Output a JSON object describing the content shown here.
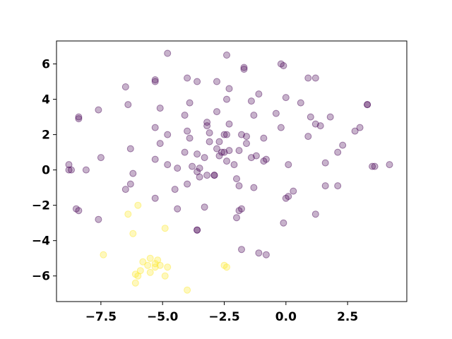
{
  "chart_data": {
    "type": "scatter",
    "title": "",
    "xlabel": "",
    "ylabel": "",
    "xlim": [
      -9.3,
      4.9
    ],
    "ylim": [
      -7.45,
      7.3
    ],
    "xticks": [
      -7.5,
      -5.0,
      -2.5,
      0.0,
      2.5
    ],
    "xtick_labels": [
      "−7.5",
      "−5.0",
      "−2.5",
      "0.0",
      "2.5"
    ],
    "yticks": [
      -6,
      -4,
      -2,
      0,
      2,
      4,
      6
    ],
    "ytick_labels": [
      "−6",
      "−4",
      "−2",
      "0",
      "2",
      "4",
      "6"
    ],
    "grid": false,
    "legend": "none",
    "series": [
      {
        "color": "#440154",
        "alpha": 0.3,
        "points": [
          [
            -4.8,
            6.6
          ],
          [
            -2.4,
            6.5
          ],
          [
            -0.2,
            6.0
          ],
          [
            -0.1,
            5.9
          ],
          [
            -1.7,
            5.8
          ],
          [
            -1.7,
            5.7
          ],
          [
            -4.0,
            5.2
          ],
          [
            -5.3,
            5.1
          ],
          [
            -5.3,
            5.0
          ],
          [
            -3.6,
            5.0
          ],
          [
            -2.8,
            5.0
          ],
          [
            0.9,
            5.2
          ],
          [
            1.2,
            5.2
          ],
          [
            -6.5,
            4.7
          ],
          [
            -2.3,
            4.6
          ],
          [
            -1.1,
            4.3
          ],
          [
            0.0,
            4.1
          ],
          [
            -2.4,
            4.0
          ],
          [
            -3.9,
            3.8
          ],
          [
            -1.4,
            3.9
          ],
          [
            0.6,
            3.8
          ],
          [
            3.3,
            3.7
          ],
          [
            3.3,
            3.7
          ],
          [
            -6.4,
            3.7
          ],
          [
            -5.1,
            3.5
          ],
          [
            -7.6,
            3.4
          ],
          [
            -2.8,
            3.3
          ],
          [
            -4.1,
            3.1
          ],
          [
            -0.4,
            3.2
          ],
          [
            -1.3,
            3.1
          ],
          [
            1.0,
            3.0
          ],
          [
            1.8,
            3.0
          ],
          [
            -8.4,
            2.9
          ],
          [
            -8.4,
            3.0
          ],
          [
            -3.2,
            2.7
          ],
          [
            -3.2,
            2.5
          ],
          [
            -2.3,
            2.6
          ],
          [
            1.2,
            2.6
          ],
          [
            1.4,
            2.5
          ],
          [
            -5.3,
            2.4
          ],
          [
            -0.2,
            2.4
          ],
          [
            3.0,
            2.4
          ],
          [
            -3.1,
            2.1
          ],
          [
            -4.0,
            2.2
          ],
          [
            -2.4,
            2.0
          ],
          [
            -2.5,
            2.0
          ],
          [
            2.8,
            2.2
          ],
          [
            -4.8,
            2.0
          ],
          [
            -1.8,
            2.0
          ],
          [
            -1.6,
            1.9
          ],
          [
            0.9,
            1.9
          ],
          [
            -3.9,
            1.8
          ],
          [
            -0.9,
            1.8
          ],
          [
            -5.1,
            1.5
          ],
          [
            -3.1,
            1.6
          ],
          [
            -2.7,
            1.6
          ],
          [
            -1.6,
            1.5
          ],
          [
            2.3,
            1.4
          ],
          [
            -6.3,
            1.2
          ],
          [
            -2.8,
            1.2
          ],
          [
            -2.6,
            1.0
          ],
          [
            -2.5,
            1.0
          ],
          [
            -2.3,
            1.1
          ],
          [
            -1.9,
            1.1
          ],
          [
            -4.1,
            1.0
          ],
          [
            -3.6,
            0.9
          ],
          [
            -2.7,
            0.8
          ],
          [
            2.1,
            1.0
          ],
          [
            -7.5,
            0.7
          ],
          [
            -5.3,
            0.6
          ],
          [
            -3.3,
            0.7
          ],
          [
            -2.4,
            0.5
          ],
          [
            -1.4,
            0.7
          ],
          [
            -1.2,
            0.8
          ],
          [
            -0.8,
            0.6
          ],
          [
            -0.9,
            0.5
          ],
          [
            -4.8,
            0.3
          ],
          [
            -3.8,
            0.2
          ],
          [
            -2.1,
            0.3
          ],
          [
            1.6,
            0.4
          ],
          [
            0.1,
            0.3
          ],
          [
            -8.8,
            0.3
          ],
          [
            -8.7,
            0.0
          ],
          [
            -8.8,
            0.0
          ],
          [
            -8.1,
            0.0
          ],
          [
            -4.4,
            0.1
          ],
          [
            -3.5,
            0.1
          ],
          [
            -3.6,
            -0.1
          ],
          [
            -3.2,
            -0.3
          ],
          [
            -2.9,
            -0.3
          ],
          [
            -2.9,
            -0.3
          ],
          [
            -6.2,
            -0.2
          ],
          [
            -3.5,
            -0.4
          ],
          [
            -2.0,
            -0.5
          ],
          [
            3.5,
            0.2
          ],
          [
            3.6,
            0.2
          ],
          [
            4.2,
            0.3
          ],
          [
            -6.3,
            -0.8
          ],
          [
            -6.5,
            -1.1
          ],
          [
            -4.5,
            -1.1
          ],
          [
            -4.0,
            -0.8
          ],
          [
            -1.9,
            -0.9
          ],
          [
            -1.3,
            -1.0
          ],
          [
            1.6,
            -0.9
          ],
          [
            2.1,
            -0.9
          ],
          [
            0.3,
            -1.2
          ],
          [
            0.1,
            -1.5
          ],
          [
            0.0,
            -1.6
          ],
          [
            -5.3,
            -1.6
          ],
          [
            -8.5,
            -2.2
          ],
          [
            -8.4,
            -2.3
          ],
          [
            -4.4,
            -2.2
          ],
          [
            -3.3,
            -2.1
          ],
          [
            -1.9,
            -2.3
          ],
          [
            -1.8,
            -2.2
          ],
          [
            1.2,
            -2.5
          ],
          [
            -7.6,
            -2.8
          ],
          [
            -2.0,
            -2.7
          ],
          [
            -0.1,
            -3.0
          ],
          [
            -3.6,
            -3.4
          ],
          [
            -3.6,
            -3.4
          ],
          [
            -1.8,
            -4.5
          ],
          [
            -1.1,
            -4.7
          ],
          [
            -0.8,
            -4.8
          ]
        ]
      },
      {
        "color": "#fde725",
        "alpha": 0.3,
        "points": [
          [
            -6.0,
            -2.0
          ],
          [
            -6.4,
            -2.5
          ],
          [
            -4.9,
            -3.3
          ],
          [
            -6.2,
            -3.6
          ],
          [
            -7.4,
            -4.8
          ],
          [
            -5.5,
            -5.0
          ],
          [
            -5.2,
            -5.1
          ],
          [
            -5.8,
            -5.2
          ],
          [
            -5.3,
            -5.3
          ],
          [
            -5.6,
            -5.4
          ],
          [
            -5.3,
            -5.5
          ],
          [
            -5.1,
            -5.4
          ],
          [
            -4.8,
            -5.5
          ],
          [
            -5.9,
            -5.7
          ],
          [
            -5.5,
            -5.8
          ],
          [
            -6.1,
            -5.9
          ],
          [
            -6.0,
            -6.0
          ],
          [
            -4.9,
            -6.0
          ],
          [
            -6.1,
            -6.4
          ],
          [
            -2.5,
            -5.4
          ],
          [
            -2.4,
            -5.5
          ],
          [
            -4.0,
            -6.8
          ]
        ]
      }
    ]
  }
}
